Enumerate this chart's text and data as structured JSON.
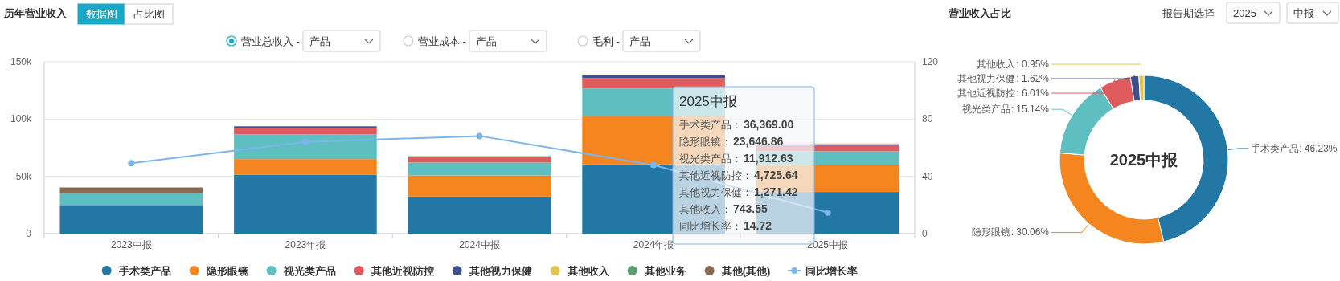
{
  "chart_data": [
    {
      "type": "bar",
      "title": "历年营业收入",
      "stacked": true,
      "categories": [
        "2023中报",
        "2023年报",
        "2024中报",
        "2024年报",
        "2025中报"
      ],
      "series": [
        {
          "name": "手术类产品",
          "color": "#2277a4",
          "values": [
            25000,
            51500,
            32400,
            60400,
            36369
          ]
        },
        {
          "name": "隐形眼镜",
          "color": "#f5861f",
          "values": [
            null,
            13600,
            18400,
            42400,
            23646.86
          ]
        },
        {
          "name": "视光类产品",
          "color": "#5fbfc0",
          "values": [
            10500,
            21600,
            11300,
            24000,
            11912.63
          ]
        },
        {
          "name": "其他近视防控",
          "color": "#e05b5e",
          "values": [
            null,
            5800,
            4500,
            8900,
            4725.64
          ]
        },
        {
          "name": "其他视力保健",
          "color": "#3f4f8c",
          "values": [
            null,
            1200,
            600,
            2400,
            1271.42
          ]
        },
        {
          "name": "其他收入",
          "color": "#e5c351",
          "values": [
            null,
            null,
            null,
            800,
            743.55
          ]
        },
        {
          "name": "其他业务",
          "color": "#5a9e6e",
          "values": [
            null,
            null,
            400,
            null,
            null
          ]
        },
        {
          "name": "其他(其他)",
          "color": "#8b6a4f",
          "values": [
            4800,
            null,
            null,
            null,
            null
          ]
        },
        {
          "name": "同比增长率",
          "color": "#7cb5ec",
          "type": "line",
          "axis": "y2",
          "values": [
            49.2,
            64.0,
            68.2,
            47.9,
            14.72
          ]
        }
      ],
      "ylim": [
        0,
        150000
      ],
      "yticks": [
        {
          "value": 0,
          "label": "0"
        },
        {
          "value": 50000,
          "label": "50k"
        },
        {
          "value": 100000,
          "label": "100k"
        },
        {
          "value": 150000,
          "label": "150k"
        }
      ],
      "y2lim": [
        0,
        120
      ],
      "y2ticks": [
        0,
        40,
        80,
        120
      ],
      "grid": "y",
      "legend": "bottom",
      "marker": "circle",
      "annotations": [
        "数据图",
        "占比图",
        "营业总收入 -",
        "产品",
        "营业成本 -",
        "产品",
        "毛利 -",
        "产品",
        "2025中报",
        "手术类产品：",
        "36,369.00",
        "隐形眼镜：",
        "23,646.86",
        "视光类产品：",
        "11,912.63",
        "其他近视防控：",
        "4,725.64",
        "其他视力保健：",
        "1,271.42",
        "其他收入：",
        "743.55",
        "同比增长率：",
        "14.72"
      ]
    },
    {
      "type": "donut",
      "title": "营业收入占比",
      "categories": [
        "手术类产品",
        "隐形眼镜",
        "视光类产品",
        "其他近视防控",
        "其他视力保健",
        "其他收入"
      ],
      "values": [
        46.23,
        30.06,
        15.14,
        6.01,
        1.62,
        0.95
      ],
      "value_labels": [
        ": 46.23%",
        ": 30.06%",
        ": 15.14%",
        ": 6.01%",
        ": 1.62%",
        ": 0.95%"
      ],
      "colors": [
        "#2277a4",
        "#f5861f",
        "#5fbfc0",
        "#e05b5e",
        "#3f4f8c",
        "#e5c351"
      ],
      "annotations": [
        "2025中报",
        "报告期选择",
        "2025",
        "中报"
      ]
    }
  ]
}
